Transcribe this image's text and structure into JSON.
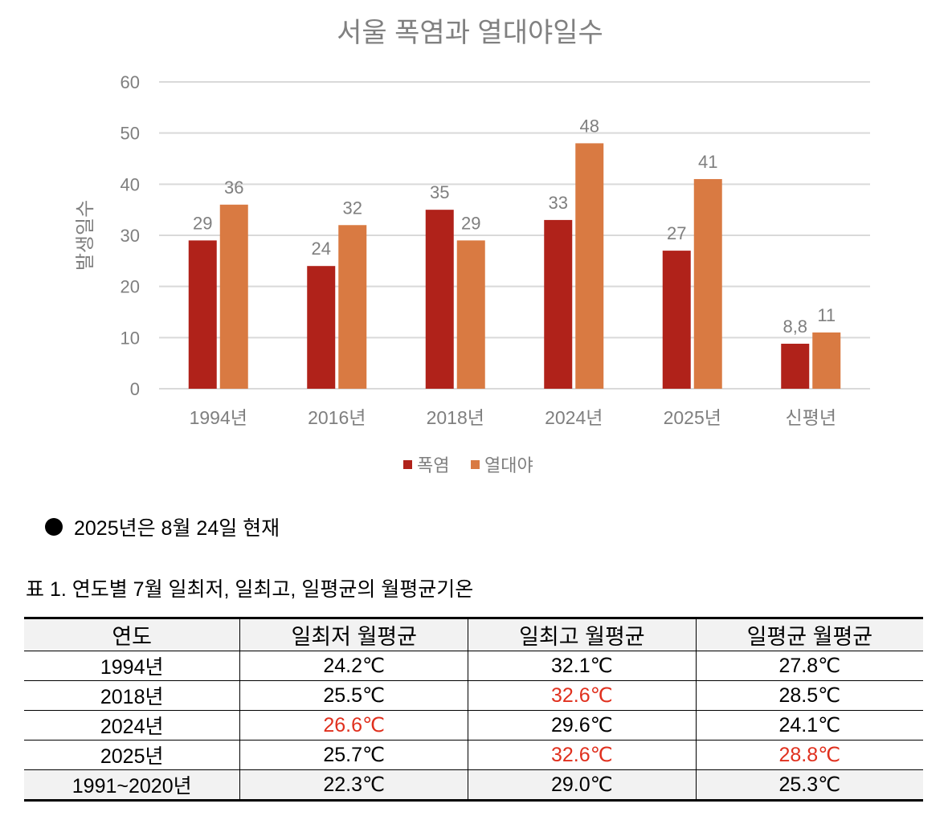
{
  "chart_data": {
    "type": "bar",
    "title": "서울 폭염과 열대야일수",
    "xlabel": "",
    "ylabel": "발생일수",
    "ylim": [
      0,
      60
    ],
    "yticks": [
      "0",
      "10",
      "20",
      "30",
      "40",
      "50",
      "60"
    ],
    "categories": [
      "1994년",
      "2016년",
      "2018년",
      "2024년",
      "2025년",
      "신평년"
    ],
    "series": [
      {
        "name": "폭염",
        "color": "#b0221a",
        "values": [
          29,
          24,
          35,
          33,
          27,
          8.8
        ],
        "labels": [
          "29",
          "24",
          "35",
          "33",
          "27",
          "8,8"
        ]
      },
      {
        "name": "열대야",
        "color": "#d97a42",
        "values": [
          36,
          32,
          29,
          48,
          41,
          11
        ],
        "labels": [
          "36",
          "32",
          "29",
          "48",
          "41",
          "11"
        ]
      }
    ],
    "grid": true,
    "legend": "bottom"
  },
  "note": "2025년은 8월 24일 현재",
  "table": {
    "caption": "표 1. 연도별 7월 일최저, 일최고, 일평균의 월평균기온",
    "headers": [
      "연도",
      "일최저 월평균",
      "일최고 월평균",
      "일평균 월평균"
    ],
    "rows": [
      {
        "cells": [
          "1994년",
          "24.2℃",
          "32.1℃",
          "27.8℃"
        ],
        "highlight": [
          false,
          false,
          false,
          false
        ]
      },
      {
        "cells": [
          "2018년",
          "25.5℃",
          "32.6℃",
          "28.5℃"
        ],
        "highlight": [
          false,
          false,
          true,
          false
        ]
      },
      {
        "cells": [
          "2024년",
          "26.6℃",
          "29.6℃",
          "24.1℃"
        ],
        "highlight": [
          false,
          true,
          false,
          false
        ]
      },
      {
        "cells": [
          "2025년",
          "25.7℃",
          "32.6℃",
          "28.8℃"
        ],
        "highlight": [
          false,
          false,
          true,
          true
        ]
      },
      {
        "cells": [
          "1991~2020년",
          "22.3℃",
          "29.0℃",
          "25.3℃"
        ],
        "highlight": [
          false,
          false,
          false,
          false
        ]
      }
    ],
    "highlight_color": "#e0301e"
  }
}
